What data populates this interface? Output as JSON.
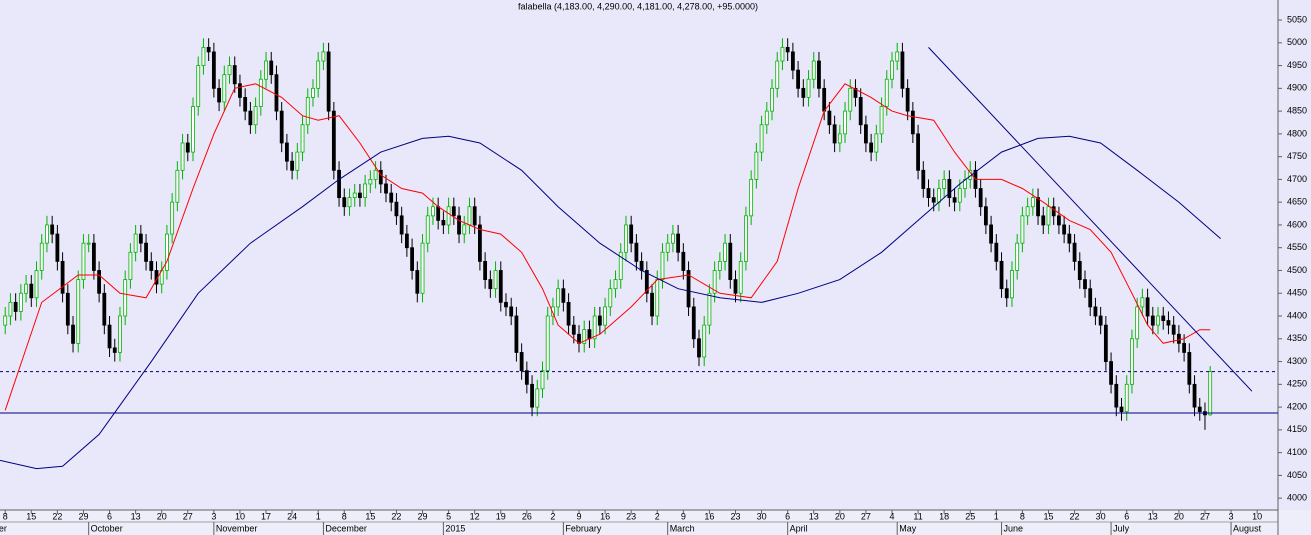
{
  "chart_data": {
    "type": "candlestick",
    "title": "falabella (4,183.00, 4,290.00, 4,181.00, 4,278.00, +95.0000)",
    "up_color": "#00b400",
    "down_color": "#000000",
    "xlim": [
      -1,
      244
    ],
    "ylim": [
      3974,
      5094
    ],
    "yticks": [
      4000,
      4050,
      4100,
      4150,
      4200,
      4250,
      4300,
      4350,
      4400,
      4450,
      4500,
      4550,
      4600,
      4650,
      4700,
      4750,
      4800,
      4850,
      4900,
      4950,
      5000,
      5050
    ],
    "xticks": [
      {
        "value": 0,
        "label": "8"
      },
      {
        "value": 5,
        "label": "15"
      },
      {
        "value": 10,
        "label": "22"
      },
      {
        "value": 15,
        "label": "29"
      },
      {
        "value": 20,
        "label": "6"
      },
      {
        "value": 25,
        "label": "13"
      },
      {
        "value": 30,
        "label": "20"
      },
      {
        "value": 35,
        "label": "27"
      },
      {
        "value": 40,
        "label": "3"
      },
      {
        "value": 45,
        "label": "10"
      },
      {
        "value": 50,
        "label": "17"
      },
      {
        "value": 55,
        "label": "24"
      },
      {
        "value": 60,
        "label": "1"
      },
      {
        "value": 65,
        "label": "8"
      },
      {
        "value": 70,
        "label": "15"
      },
      {
        "value": 75,
        "label": "22"
      },
      {
        "value": 80,
        "label": "29"
      },
      {
        "value": 85,
        "label": "5"
      },
      {
        "value": 90,
        "label": "12"
      },
      {
        "value": 95,
        "label": "19"
      },
      {
        "value": 100,
        "label": "26"
      },
      {
        "value": 105,
        "label": "2"
      },
      {
        "value": 110,
        "label": "9"
      },
      {
        "value": 115,
        "label": "16"
      },
      {
        "value": 120,
        "label": "23"
      },
      {
        "value": 125,
        "label": "2"
      },
      {
        "value": 130,
        "label": "9"
      },
      {
        "value": 135,
        "label": "16"
      },
      {
        "value": 140,
        "label": "23"
      },
      {
        "value": 145,
        "label": "30"
      },
      {
        "value": 150,
        "label": "6"
      },
      {
        "value": 155,
        "label": "13"
      },
      {
        "value": 160,
        "label": "20"
      },
      {
        "value": 165,
        "label": "27"
      },
      {
        "value": 170,
        "label": "4"
      },
      {
        "value": 175,
        "label": "11"
      },
      {
        "value": 180,
        "label": "18"
      },
      {
        "value": 185,
        "label": "25"
      },
      {
        "value": 190,
        "label": "1"
      },
      {
        "value": 195,
        "label": "8"
      },
      {
        "value": 200,
        "label": "15"
      },
      {
        "value": 205,
        "label": "22"
      },
      {
        "value": 210,
        "label": "30"
      },
      {
        "value": 215,
        "label": "6"
      },
      {
        "value": 220,
        "label": "13"
      },
      {
        "value": 225,
        "label": "20"
      },
      {
        "value": 230,
        "label": "27"
      },
      {
        "value": 235,
        "label": "3"
      },
      {
        "value": 240,
        "label": "10"
      }
    ],
    "month_ticks": [
      {
        "value": -4,
        "label": "mber"
      },
      {
        "value": 16,
        "label": "October"
      },
      {
        "value": 40,
        "label": "November"
      },
      {
        "value": 61,
        "label": "December"
      },
      {
        "value": 84,
        "label": "2015"
      },
      {
        "value": 107,
        "label": "February"
      },
      {
        "value": 127,
        "label": "March"
      },
      {
        "value": 150,
        "label": "April"
      },
      {
        "value": 171,
        "label": "May"
      },
      {
        "value": 191,
        "label": "June"
      },
      {
        "value": 212,
        "label": "July"
      },
      {
        "value": 235,
        "label": "August"
      }
    ],
    "open": [
      4380,
      4400,
      4430,
      4410,
      4450,
      4470,
      4440,
      4500,
      4560,
      4600,
      4580,
      4520,
      4450,
      4380,
      4340,
      4480,
      4560,
      4560,
      4500,
      4450,
      4380,
      4330,
      4320,
      4400,
      4480,
      4540,
      4580,
      4560,
      4520,
      4500,
      4470,
      4500,
      4580,
      4650,
      4720,
      4780,
      4760,
      4860,
      4950,
      4990,
      4980,
      4900,
      4870,
      4930,
      4950,
      4910,
      4880,
      4850,
      4820,
      4860,
      4920,
      4960,
      4930,
      4850,
      4780,
      4740,
      4720,
      4760,
      4820,
      4880,
      4900,
      4960,
      4980,
      4850,
      4720,
      4660,
      4640,
      4660,
      4670,
      4660,
      4690,
      4700,
      4720,
      4690,
      4670,
      4650,
      4620,
      4580,
      4550,
      4500,
      4450,
      4560,
      4620,
      4640,
      4610,
      4600,
      4640,
      4620,
      4580,
      4600,
      4640,
      4600,
      4520,
      4480,
      4460,
      4500,
      4430,
      4420,
      4400,
      4320,
      4280,
      4250,
      4200,
      4240,
      4280,
      4400,
      4420,
      4460,
      4430,
      4380,
      4360,
      4340,
      4370,
      4350,
      4400,
      4380,
      4420,
      4460,
      4480,
      4540,
      4600,
      4560,
      4520,
      4500,
      4450,
      4400,
      4480,
      4540,
      4560,
      4580,
      4540,
      4500,
      4420,
      4350,
      4310,
      4380,
      4450,
      4500,
      4520,
      4560,
      4480,
      4450,
      4520,
      4620,
      4700,
      4760,
      4820,
      4850,
      4900,
      4960,
      4990,
      4980,
      4940,
      4900,
      4880,
      4920,
      4960,
      4900,
      4850,
      4820,
      4780,
      4800,
      4850,
      4900,
      4880,
      4820,
      4780,
      4760,
      4800,
      4860,
      4920,
      4960,
      4980,
      4900,
      4850,
      4800,
      4720,
      4680,
      4660,
      4650,
      4680,
      4700,
      4660,
      4650,
      4680,
      4700,
      4720,
      4680,
      4640,
      4600,
      4560,
      4520,
      4460,
      4440,
      4500,
      4560,
      4620,
      4640,
      4660,
      4620,
      4600,
      4640,
      4620,
      4600,
      4580,
      4560,
      4520,
      4480,
      4460,
      4420,
      4400,
      4380,
      4300,
      4250,
      4200,
      4190,
      4250,
      4350,
      4420,
      4440,
      4400,
      4380,
      4400,
      4390,
      4380,
      4360,
      4340,
      4320,
      4250,
      4200,
      4190,
      4183
    ],
    "high": [
      4420,
      4450,
      4450,
      4470,
      4490,
      4490,
      4520,
      4580,
      4620,
      4620,
      4600,
      4540,
      4470,
      4400,
      4500,
      4580,
      4580,
      4580,
      4520,
      4470,
      4400,
      4350,
      4420,
      4500,
      4560,
      4600,
      4600,
      4580,
      4540,
      4520,
      4520,
      4600,
      4670,
      4740,
      4800,
      4800,
      4880,
      4970,
      5010,
      5010,
      5000,
      4920,
      4950,
      4970,
      4970,
      4930,
      4900,
      4870,
      4880,
      4940,
      4980,
      4980,
      4950,
      4870,
      4800,
      4760,
      4780,
      4840,
      4900,
      4920,
      4980,
      5000,
      5000,
      4870,
      4740,
      4680,
      4680,
      4690,
      4690,
      4710,
      4720,
      4740,
      4740,
      4710,
      4690,
      4670,
      4640,
      4600,
      4570,
      4520,
      4580,
      4640,
      4660,
      4660,
      4630,
      4660,
      4660,
      4640,
      4620,
      4660,
      4660,
      4620,
      4540,
      4500,
      4520,
      4520,
      4450,
      4440,
      4420,
      4340,
      4300,
      4270,
      4260,
      4300,
      4420,
      4440,
      4480,
      4480,
      4450,
      4400,
      4380,
      4390,
      4390,
      4420,
      4420,
      4440,
      4480,
      4500,
      4560,
      4620,
      4620,
      4580,
      4540,
      4520,
      4470,
      4500,
      4560,
      4580,
      4600,
      4600,
      4560,
      4520,
      4440,
      4370,
      4400,
      4470,
      4520,
      4540,
      4580,
      4580,
      4500,
      4540,
      4640,
      4720,
      4780,
      4840,
      4870,
      4920,
      4980,
      5010,
      5010,
      5000,
      4960,
      4920,
      4940,
      4980,
      4980,
      4920,
      4870,
      4840,
      4820,
      4870,
      4920,
      4920,
      4900,
      4840,
      4800,
      4820,
      4880,
      4940,
      4980,
      5000,
      5000,
      4920,
      4870,
      4820,
      4740,
      4700,
      4680,
      4700,
      4720,
      4720,
      4680,
      4700,
      4720,
      4740,
      4740,
      4700,
      4660,
      4620,
      4580,
      4540,
      4480,
      4520,
      4580,
      4640,
      4660,
      4680,
      4680,
      4640,
      4660,
      4660,
      4640,
      4620,
      4600,
      4580,
      4540,
      4500,
      4480,
      4440,
      4420,
      4400,
      4320,
      4270,
      4220,
      4270,
      4370,
      4440,
      4460,
      4460,
      4420,
      4420,
      4420,
      4410,
      4400,
      4380,
      4360,
      4340,
      4270,
      4220,
      4210,
      4290
    ],
    "low": [
      4360,
      4380,
      4390,
      4390,
      4430,
      4420,
      4420,
      4480,
      4540,
      4560,
      4500,
      4430,
      4360,
      4320,
      4320,
      4460,
      4540,
      4480,
      4430,
      4360,
      4310,
      4300,
      4300,
      4380,
      4460,
      4520,
      4540,
      4500,
      4480,
      4450,
      4450,
      4480,
      4560,
      4630,
      4700,
      4740,
      4740,
      4840,
      4930,
      4960,
      4880,
      4850,
      4850,
      4910,
      4890,
      4860,
      4830,
      4800,
      4800,
      4840,
      4900,
      4910,
      4830,
      4760,
      4720,
      4700,
      4700,
      4740,
      4800,
      4860,
      4880,
      4940,
      4830,
      4700,
      4640,
      4620,
      4620,
      4640,
      4640,
      4640,
      4670,
      4680,
      4670,
      4650,
      4630,
      4600,
      4560,
      4530,
      4480,
      4430,
      4430,
      4540,
      4600,
      4590,
      4580,
      4580,
      4600,
      4560,
      4560,
      4580,
      4580,
      4500,
      4460,
      4440,
      4440,
      4410,
      4400,
      4380,
      4300,
      4260,
      4230,
      4180,
      4180,
      4220,
      4260,
      4380,
      4400,
      4410,
      4360,
      4340,
      4320,
      4320,
      4330,
      4330,
      4360,
      4360,
      4400,
      4440,
      4460,
      4520,
      4540,
      4500,
      4480,
      4430,
      4380,
      4380,
      4460,
      4520,
      4540,
      4520,
      4480,
      4400,
      4330,
      4290,
      4290,
      4360,
      4430,
      4480,
      4500,
      4460,
      4430,
      4430,
      4500,
      4600,
      4680,
      4740,
      4800,
      4830,
      4880,
      4940,
      4960,
      4920,
      4880,
      4860,
      4860,
      4900,
      4880,
      4830,
      4800,
      4760,
      4760,
      4780,
      4830,
      4860,
      4800,
      4760,
      4740,
      4740,
      4780,
      4840,
      4900,
      4940,
      4880,
      4830,
      4780,
      4700,
      4660,
      4640,
      4630,
      4630,
      4660,
      4640,
      4630,
      4630,
      4660,
      4680,
      4660,
      4620,
      4580,
      4540,
      4500,
      4440,
      4420,
      4420,
      4480,
      4540,
      4600,
      4620,
      4600,
      4580,
      4580,
      4600,
      4580,
      4560,
      4540,
      4500,
      4460,
      4440,
      4400,
      4380,
      4360,
      4280,
      4230,
      4180,
      4170,
      4170,
      4230,
      4330,
      4400,
      4380,
      4360,
      4360,
      4370,
      4360,
      4340,
      4320,
      4300,
      4230,
      4180,
      4170,
      4150,
      4181
    ],
    "close": [
      4400,
      4430,
      4410,
      4450,
      4470,
      4440,
      4500,
      4560,
      4600,
      4580,
      4520,
      4450,
      4380,
      4340,
      4480,
      4560,
      4560,
      4500,
      4450,
      4380,
      4330,
      4320,
      4400,
      4480,
      4540,
      4580,
      4560,
      4520,
      4500,
      4470,
      4500,
      4580,
      4650,
      4720,
      4780,
      4760,
      4860,
      4950,
      4990,
      4980,
      4900,
      4870,
      4930,
      4950,
      4910,
      4880,
      4850,
      4820,
      4860,
      4920,
      4960,
      4930,
      4850,
      4780,
      4740,
      4720,
      4760,
      4820,
      4880,
      4900,
      4960,
      4980,
      4850,
      4720,
      4660,
      4640,
      4660,
      4670,
      4660,
      4690,
      4700,
      4720,
      4690,
      4670,
      4650,
      4620,
      4580,
      4550,
      4500,
      4450,
      4560,
      4620,
      4640,
      4610,
      4600,
      4640,
      4620,
      4580,
      4600,
      4640,
      4600,
      4520,
      4480,
      4460,
      4500,
      4430,
      4420,
      4400,
      4320,
      4280,
      4250,
      4200,
      4240,
      4280,
      4400,
      4420,
      4460,
      4430,
      4380,
      4360,
      4340,
      4370,
      4350,
      4400,
      4380,
      4420,
      4460,
      4480,
      4540,
      4600,
      4560,
      4520,
      4500,
      4450,
      4400,
      4480,
      4540,
      4560,
      4580,
      4540,
      4500,
      4420,
      4350,
      4310,
      4380,
      4450,
      4500,
      4520,
      4560,
      4480,
      4450,
      4520,
      4620,
      4700,
      4760,
      4820,
      4850,
      4900,
      4960,
      4990,
      4980,
      4940,
      4900,
      4880,
      4920,
      4960,
      4900,
      4850,
      4820,
      4780,
      4800,
      4850,
      4900,
      4880,
      4820,
      4780,
      4760,
      4800,
      4860,
      4920,
      4960,
      4980,
      4900,
      4850,
      4800,
      4720,
      4680,
      4660,
      4650,
      4680,
      4700,
      4660,
      4650,
      4680,
      4700,
      4720,
      4680,
      4640,
      4600,
      4560,
      4520,
      4460,
      4440,
      4500,
      4560,
      4620,
      4640,
      4660,
      4620,
      4600,
      4640,
      4620,
      4600,
      4580,
      4560,
      4520,
      4480,
      4460,
      4420,
      4400,
      4380,
      4300,
      4250,
      4200,
      4190,
      4250,
      4350,
      4420,
      4440,
      4400,
      4380,
      4400,
      4390,
      4380,
      4360,
      4340,
      4320,
      4250,
      4200,
      4190,
      4183,
      4278
    ],
    "lines": [
      {
        "color": "#ff0000",
        "x": [
          0,
          7,
          14,
          18,
          22,
          27,
          31,
          36,
          40,
          44,
          48,
          53,
          57,
          60,
          64,
          68,
          72,
          76,
          80,
          83,
          87,
          91,
          95,
          99,
          103,
          106,
          110,
          114,
          120,
          125,
          131,
          137,
          143,
          148,
          152,
          157,
          161,
          166,
          170,
          173,
          178,
          182,
          186,
          191,
          195,
          199,
          204,
          208,
          212,
          216,
          219,
          222,
          226,
          229,
          231
        ],
        "values": [
          4193,
          4430,
          4490,
          4490,
          4450,
          4440,
          4520,
          4680,
          4800,
          4900,
          4910,
          4880,
          4840,
          4830,
          4840,
          4780,
          4710,
          4680,
          4670,
          4640,
          4610,
          4590,
          4580,
          4540,
          4460,
          4380,
          4340,
          4360,
          4420,
          4480,
          4490,
          4450,
          4440,
          4520,
          4680,
          4850,
          4910,
          4880,
          4850,
          4840,
          4830,
          4760,
          4700,
          4700,
          4680,
          4650,
          4610,
          4590,
          4540,
          4450,
          4380,
          4340,
          4350,
          4370,
          4370
        ]
      },
      {
        "color": "#000080",
        "x": [
          -1,
          6,
          11,
          18,
          28,
          37,
          47,
          57,
          64,
          72,
          80,
          85,
          91,
          99,
          106,
          114,
          122,
          129,
          137,
          145,
          152,
          160,
          168,
          175,
          183,
          191,
          198,
          204,
          210,
          217,
          225,
          233
        ],
        "values": [
          4083,
          4065,
          4070,
          4140,
          4300,
          4450,
          4560,
          4640,
          4700,
          4760,
          4790,
          4795,
          4780,
          4720,
          4640,
          4560,
          4500,
          4460,
          4440,
          4430,
          4450,
          4480,
          4540,
          4610,
          4690,
          4760,
          4790,
          4795,
          4780,
          4720,
          4650,
          4570
        ]
      },
      {
        "color": "#000080",
        "x": [
          177,
          239
        ],
        "values": [
          4990,
          4235
        ]
      }
    ],
    "hlines": [
      {
        "value": 4278,
        "color": "#000080",
        "dashed": true
      },
      {
        "value": 4187,
        "color": "#000080",
        "dashed": false
      }
    ]
  }
}
